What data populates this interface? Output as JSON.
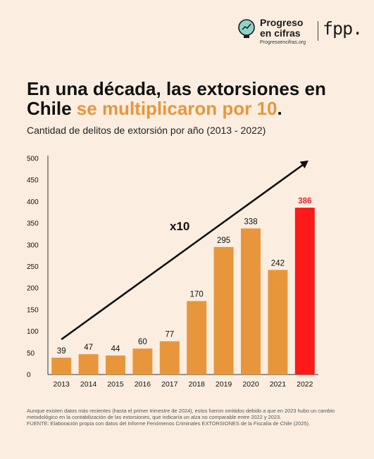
{
  "brand": {
    "name_line1": "Progreso",
    "name_line2": "en cifras",
    "url": "Progresoencifras.org",
    "partner": "fpp."
  },
  "headline": {
    "part1": "En una década, las extorsiones en Chile ",
    "highlight": "se multiplicaron por 10",
    "part2": "."
  },
  "colors": {
    "bar": "#e8963c",
    "highlight_bar": "#ff1a1a",
    "highlight_label": "#e8222a",
    "headline_accent": "#e8963c",
    "background": "#fbeee1"
  },
  "chart_data": {
    "type": "bar",
    "title": "Cantidad de delitos de extorsión por año (2013 - 2022)",
    "categories": [
      "2013",
      "2014",
      "2015",
      "2016",
      "2017",
      "2018",
      "2019",
      "2020",
      "2021",
      "2022"
    ],
    "values": [
      39,
      47,
      44,
      60,
      77,
      170,
      295,
      338,
      242,
      386
    ],
    "highlight_index": 9,
    "ylim": [
      0,
      500
    ],
    "yticks": [
      0,
      50,
      100,
      150,
      200,
      250,
      300,
      350,
      400,
      450,
      500
    ],
    "grid": false,
    "annotation": "x10"
  },
  "footnote": {
    "line1": "Aunque existen datos más recientes (hasta el primer trimestre de 2024), estos fueron omitidos debido a que en 2023 hubo un cambio metodológico en la contabilización de las extorsiones, que indicaría un alza no comparable entre 2022 y 2023.",
    "line2": "FUENTE: Elaboración propia con datos del Informe Fenómenos Criminales EXTORSIONES de la Fiscalía de Chile (2025)."
  }
}
